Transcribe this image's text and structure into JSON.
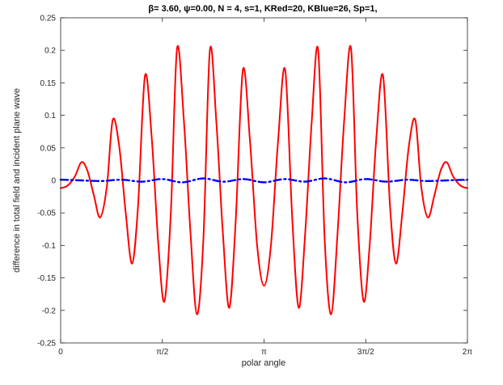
{
  "chart_data": {
    "type": "line",
    "title": "β= 3.60, ψ=0.00, N = 4, s=1, KRed=20, KBlue=26, Sp=1,",
    "xlabel": "polar angle",
    "ylabel": "difference in total field and incident plane wave",
    "xlim": [
      0,
      6.283185
    ],
    "ylim": [
      -0.25,
      0.25
    ],
    "x_ticks": [
      {
        "value": 0,
        "label": "0"
      },
      {
        "value": 1.570796,
        "label": "π/2"
      },
      {
        "value": 3.141593,
        "label": "π"
      },
      {
        "value": 4.712389,
        "label": "3π/2"
      },
      {
        "value": 6.283185,
        "label": "2π"
      }
    ],
    "y_ticks": [
      {
        "value": -0.25,
        "label": "-0.25"
      },
      {
        "value": -0.2,
        "label": "-0.2"
      },
      {
        "value": -0.15,
        "label": "-0.15"
      },
      {
        "value": -0.1,
        "label": "-0.1"
      },
      {
        "value": -0.05,
        "label": "-0.05"
      },
      {
        "value": 0,
        "label": "0"
      },
      {
        "value": 0.05,
        "label": "0.05"
      },
      {
        "value": 0.1,
        "label": "0.1"
      },
      {
        "value": 0.15,
        "label": "0.15"
      },
      {
        "value": 0.2,
        "label": "0.2"
      },
      {
        "value": 0.25,
        "label": "0.25"
      }
    ],
    "grid": false,
    "series": [
      {
        "style": "solid",
        "color": "#ff0000",
        "x": [
          0,
          0.108,
          0.22,
          0.321,
          0.413,
          0.513,
          0.61,
          0.713,
          0.805,
          0.905,
          1.005,
          1.103,
          1.195,
          1.303,
          1.407,
          1.51,
          1.603,
          1.702,
          1.798,
          1.905,
          2.005,
          2.105,
          2.205,
          2.305,
          2.405,
          2.505,
          2.605,
          2.705,
          2.815,
          2.925,
          3.035,
          3.141593,
          3.248,
          3.358,
          3.468,
          3.578,
          3.678,
          3.778,
          3.878,
          3.978,
          4.078,
          4.178,
          4.278,
          4.378,
          4.485,
          4.581,
          4.68,
          4.773,
          4.876,
          4.98,
          5.088,
          5.18,
          5.278,
          5.378,
          5.478,
          5.57,
          5.673,
          5.773,
          5.87,
          5.962,
          6.063,
          6.175,
          6.283185
        ],
        "y": [
          -0.012,
          -0.008,
          0.006,
          0.028,
          0.015,
          -0.023,
          -0.057,
          -0.01,
          0.093,
          0.052,
          -0.05,
          -0.128,
          -0.04,
          0.161,
          0.065,
          -0.1,
          -0.186,
          -0.05,
          0.203,
          0.09,
          -0.08,
          -0.206,
          -0.09,
          0.2,
          0.09,
          -0.08,
          -0.196,
          -0.06,
          0.17,
          0.06,
          -0.1,
          -0.162,
          -0.1,
          0.06,
          0.17,
          -0.06,
          -0.196,
          -0.08,
          0.09,
          0.2,
          -0.09,
          -0.206,
          -0.08,
          0.09,
          0.203,
          -0.05,
          -0.186,
          -0.1,
          0.065,
          0.161,
          -0.04,
          -0.128,
          -0.05,
          0.052,
          0.093,
          -0.01,
          -0.057,
          -0.023,
          0.015,
          0.028,
          0.006,
          -0.008,
          -0.012
        ]
      },
      {
        "style": "dash-dot",
        "color": "#0000ff",
        "x": [
          0,
          0.31,
          0.63,
          0.94,
          1.26,
          1.57,
          1.88,
          2.2,
          2.51,
          2.83,
          3.14,
          3.46,
          3.77,
          4.08,
          4.4,
          4.71,
          5.03,
          5.34,
          5.65,
          5.97,
          6.283185
        ],
        "y": [
          0.001,
          0.0,
          -0.001,
          0.001,
          -0.002,
          0.002,
          -0.003,
          0.003,
          -0.002,
          0.002,
          -0.003,
          0.002,
          -0.002,
          0.003,
          -0.003,
          0.002,
          -0.002,
          0.001,
          -0.001,
          0.0,
          0.001
        ]
      }
    ]
  }
}
